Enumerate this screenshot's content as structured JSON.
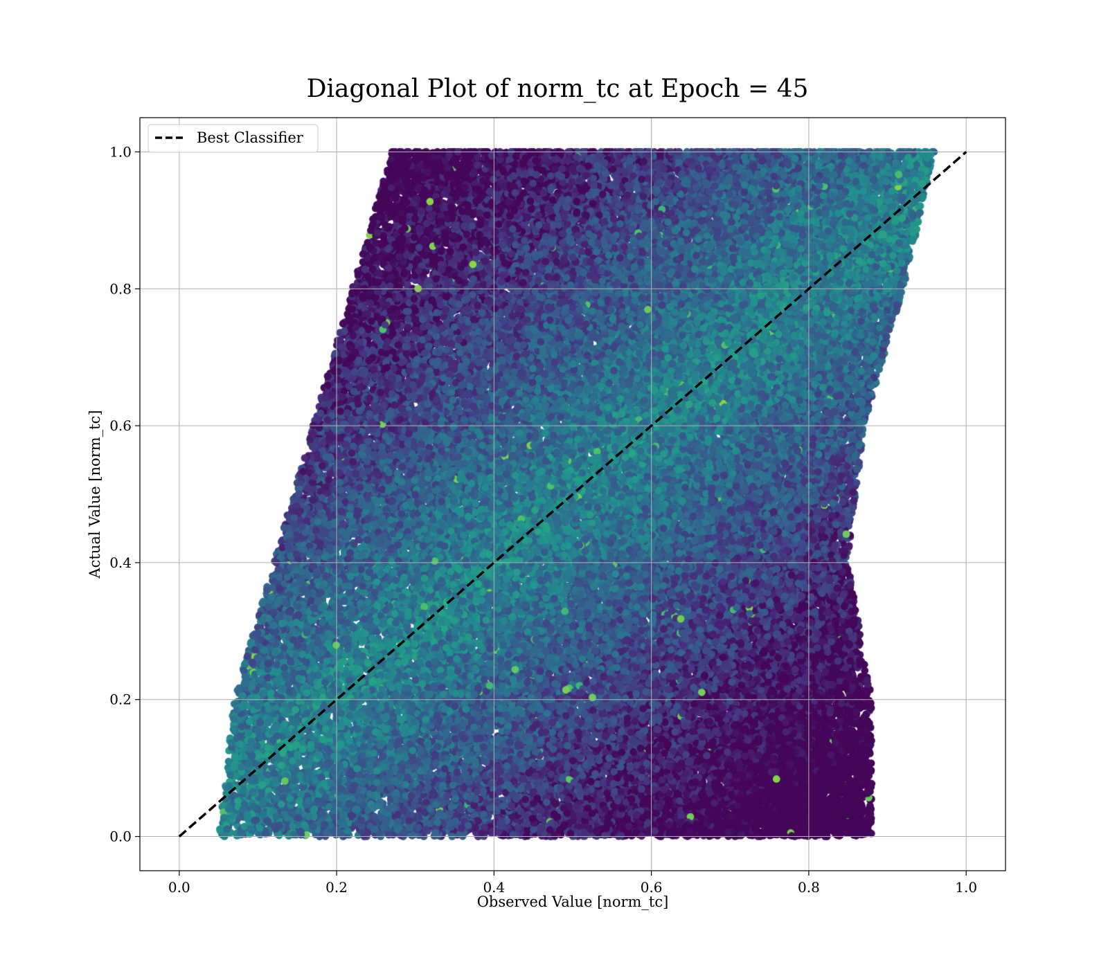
{
  "chart_data": {
    "type": "scatter",
    "title": "Diagonal Plot of norm_tc at Epoch = 45",
    "xlabel": "Observed Value [norm_tc]",
    "ylabel": "Actual Value [norm_tc]",
    "xlim": [
      -0.05,
      1.05
    ],
    "ylim": [
      -0.05,
      1.05
    ],
    "xticks": [
      0.0,
      0.2,
      0.4,
      0.6,
      0.8,
      1.0
    ],
    "yticks": [
      0.0,
      0.2,
      0.4,
      0.6,
      0.8,
      1.0
    ],
    "xtick_labels": [
      "0.0",
      "0.2",
      "0.4",
      "0.6",
      "0.8",
      "1.0"
    ],
    "ytick_labels": [
      "0.0",
      "0.2",
      "0.4",
      "0.6",
      "0.8",
      "1.0"
    ],
    "grid": true,
    "legend": {
      "location": "upper-left",
      "entries": [
        {
          "label": "Best Classifier",
          "style": "dashed",
          "color": "#000000"
        }
      ]
    },
    "reference_line": {
      "name": "Best Classifier",
      "x": [
        0.0,
        1.0
      ],
      "y": [
        0.0,
        1.0
      ],
      "style": "dashed",
      "color": "#000000"
    },
    "colormap": "viridis",
    "colormap_stops": [
      "#440154",
      "#472d7b",
      "#3b528b",
      "#2c728e",
      "#21918c",
      "#28ae80",
      "#5ec962",
      "#addc30"
    ],
    "approx_point_count": 60000,
    "distribution": {
      "y_range": [
        0.0,
        1.0
      ],
      "x_min_at_y": {
        "y": [
          0.0,
          0.2,
          0.4,
          0.6,
          0.8,
          1.0
        ],
        "x": [
          0.05,
          0.07,
          0.12,
          0.17,
          0.22,
          0.27
        ]
      },
      "x_max_at_y": {
        "y": [
          0.0,
          0.2,
          0.4,
          0.6,
          0.8,
          1.0
        ],
        "x": [
          0.88,
          0.88,
          0.85,
          0.87,
          0.92,
          0.96
        ]
      },
      "color_note": "points near the diagonal are brighter (teal/green); points far from the diagonal are darker (purple)"
    }
  }
}
